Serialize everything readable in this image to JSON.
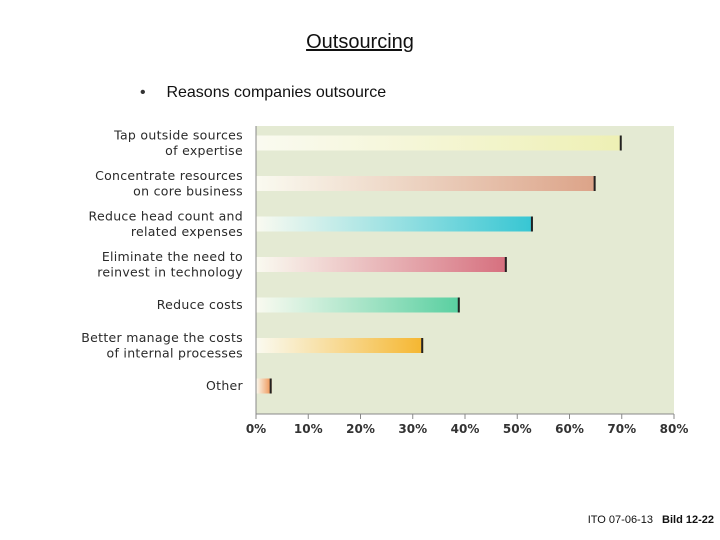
{
  "slide": {
    "title": "Outsourcing",
    "bullet": "Reasons companies outsource"
  },
  "footer": {
    "ref": "ITO  07-06-13",
    "bild": "Bild 12-22"
  },
  "colors": {
    "plot_background": "#e4ead3",
    "bar_colors": [
      "#eef0b4",
      "#dca388",
      "#36c6d3",
      "#d66f7e",
      "#58cfa0",
      "#f5b62f",
      "#ee8e4b"
    ]
  },
  "chart_data": {
    "type": "bar",
    "orientation": "horizontal",
    "categories": [
      [
        "Tap outside sources",
        "of expertise"
      ],
      [
        "Concentrate resources",
        "on core business"
      ],
      [
        "Reduce head count and",
        "related expenses"
      ],
      [
        "Eliminate the need to",
        "reinvest in technology"
      ],
      [
        "Reduce costs"
      ],
      [
        "Better manage the costs",
        "of internal processes"
      ],
      [
        "Other"
      ]
    ],
    "values": [
      70,
      65,
      53,
      48,
      39,
      32,
      3
    ],
    "xlim": [
      0,
      80
    ],
    "xticks": [
      "0%",
      "10%",
      "20%",
      "30%",
      "40%",
      "50%",
      "60%",
      "70%",
      "80%"
    ],
    "grid": false,
    "title": "",
    "xlabel": "",
    "ylabel": ""
  }
}
